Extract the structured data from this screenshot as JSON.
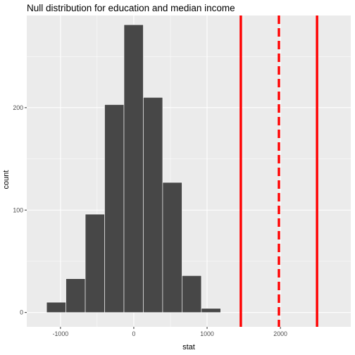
{
  "chart_data": {
    "type": "bar",
    "title": "Null distribution for education and median income",
    "xlabel": "stat",
    "ylabel": "count",
    "xlim": [
      -1460,
      2960
    ],
    "ylim": [
      -14,
      290
    ],
    "x_ticks": [
      -1000,
      0,
      1000,
      2000
    ],
    "x_tick_labels": [
      "-1000",
      "0",
      "1000",
      "2000"
    ],
    "y_ticks": [
      0,
      100,
      200
    ],
    "y_tick_labels": [
      "0",
      "100",
      "200"
    ],
    "bins": [
      {
        "x0": -1190,
        "x1": -926,
        "count": 10
      },
      {
        "x0": -926,
        "x1": -662,
        "count": 33
      },
      {
        "x0": -662,
        "x1": -398,
        "count": 96
      },
      {
        "x0": -398,
        "x1": -134,
        "count": 203
      },
      {
        "x0": -134,
        "x1": 130,
        "count": 281
      },
      {
        "x0": 130,
        "x1": 394,
        "count": 210
      },
      {
        "x0": 394,
        "x1": 658,
        "count": 127
      },
      {
        "x0": 658,
        "x1": 922,
        "count": 36
      },
      {
        "x0": 922,
        "x1": 1186,
        "count": 4
      }
    ],
    "vlines": [
      {
        "x": 1460,
        "style": "solid"
      },
      {
        "x": 1980,
        "style": "dashed"
      },
      {
        "x": 2500,
        "style": "solid"
      }
    ],
    "colors": {
      "bar_fill": "#474747",
      "bar_stroke": "#ffffff",
      "panel_bg": "#ebebeb",
      "grid_major": "#ffffff",
      "vline": "#ff0000"
    },
    "grid": true,
    "legend": "none"
  }
}
